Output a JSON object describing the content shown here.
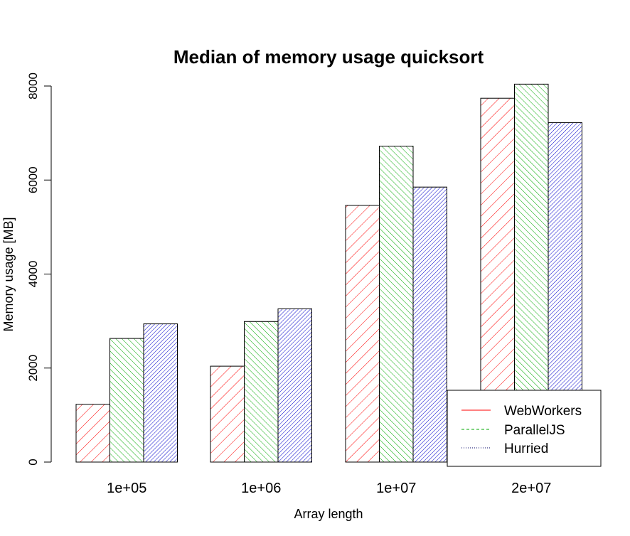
{
  "chart_data": {
    "type": "bar",
    "title": "Median of memory usage quicksort",
    "xlabel": "Array length",
    "ylabel": "Memory usage [MB]",
    "categories": [
      "1e+05",
      "1e+06",
      "1e+07",
      "2e+07"
    ],
    "series": [
      {
        "name": "WebWorkers",
        "values": [
          1230,
          2040,
          5460,
          7740
        ],
        "color": "#ff0000",
        "line_style": "solid"
      },
      {
        "name": "ParallelJS",
        "values": [
          2630,
          2990,
          6720,
          8040
        ],
        "color": "#00aa00",
        "line_style": "dashed"
      },
      {
        "name": "Hurried",
        "values": [
          2940,
          3260,
          5850,
          7220
        ],
        "color": "#0000cc",
        "line_style": "dotted"
      }
    ],
    "ylim": [
      0,
      8000
    ],
    "yticks": [
      0,
      2000,
      4000,
      6000,
      8000
    ],
    "legend": {
      "position": "bottom-right"
    },
    "grid": false
  }
}
